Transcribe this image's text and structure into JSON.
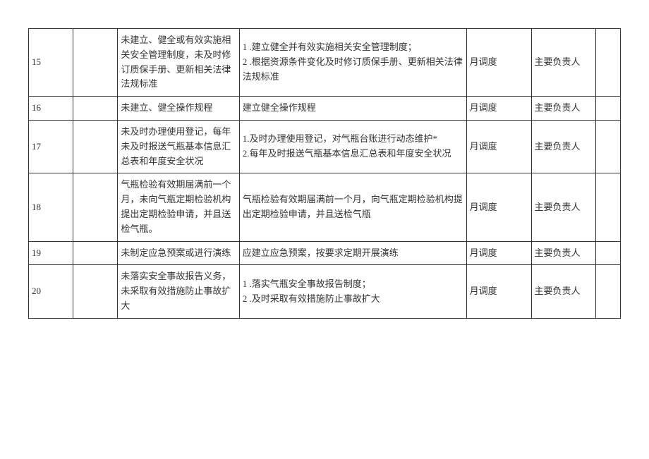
{
  "rows": [
    {
      "num": "15",
      "issue": "未建立、健全或有效实施相关安全管理制度，未及时修订质保手册、更新相关法律法规标准",
      "action": "1    .建立健全并有效实施相关安全管理制度；\n2    .根据资源条件变化及时修订质保手册、更新相关法律法规标准",
      "cycle": "月调度",
      "owner": "主要负责人"
    },
    {
      "num": "16",
      "issue": "未建立、健全操作规程",
      "action": "建立健全操作规程",
      "cycle": "月调度",
      "owner": "主要负责人"
    },
    {
      "num": "17",
      "issue": "未及时办理使用登记，每年未及时报送气瓶基本信息汇总表和年度安全状况",
      "action": "1.及时办理使用登记，对气瓶台账进行动态维护*\n2.每年及时报送气瓶基本信息汇总表和年度安全状况",
      "cycle": "月调度",
      "owner": "主要负责人"
    },
    {
      "num": "18",
      "issue": "气瓶检验有效期届满前一个月，未向气瓶定期检验机构提出定期检验申请，并且送检气瓶。",
      "action": "气瓶检验有效期届满前一个月，向气瓶定期检验机构提出定期检验申请，并且送检气瓶",
      "cycle": "月调度",
      "owner": "主要负责人"
    },
    {
      "num": "19",
      "issue": "未制定应急预案或进行演练",
      "action": "应建立应急预案，按要求定期开展演练",
      "cycle": "月调度",
      "owner": "主要负责人"
    },
    {
      "num": "20",
      "issue": "未落实安全事故报告义务，未采取有效措施防止事故扩大",
      "action": "1    .落实气瓶安全事故报告制度；\n2    .及时采取有效措施防止事故扩大",
      "cycle": "月调度",
      "owner": "主要负责人"
    }
  ]
}
